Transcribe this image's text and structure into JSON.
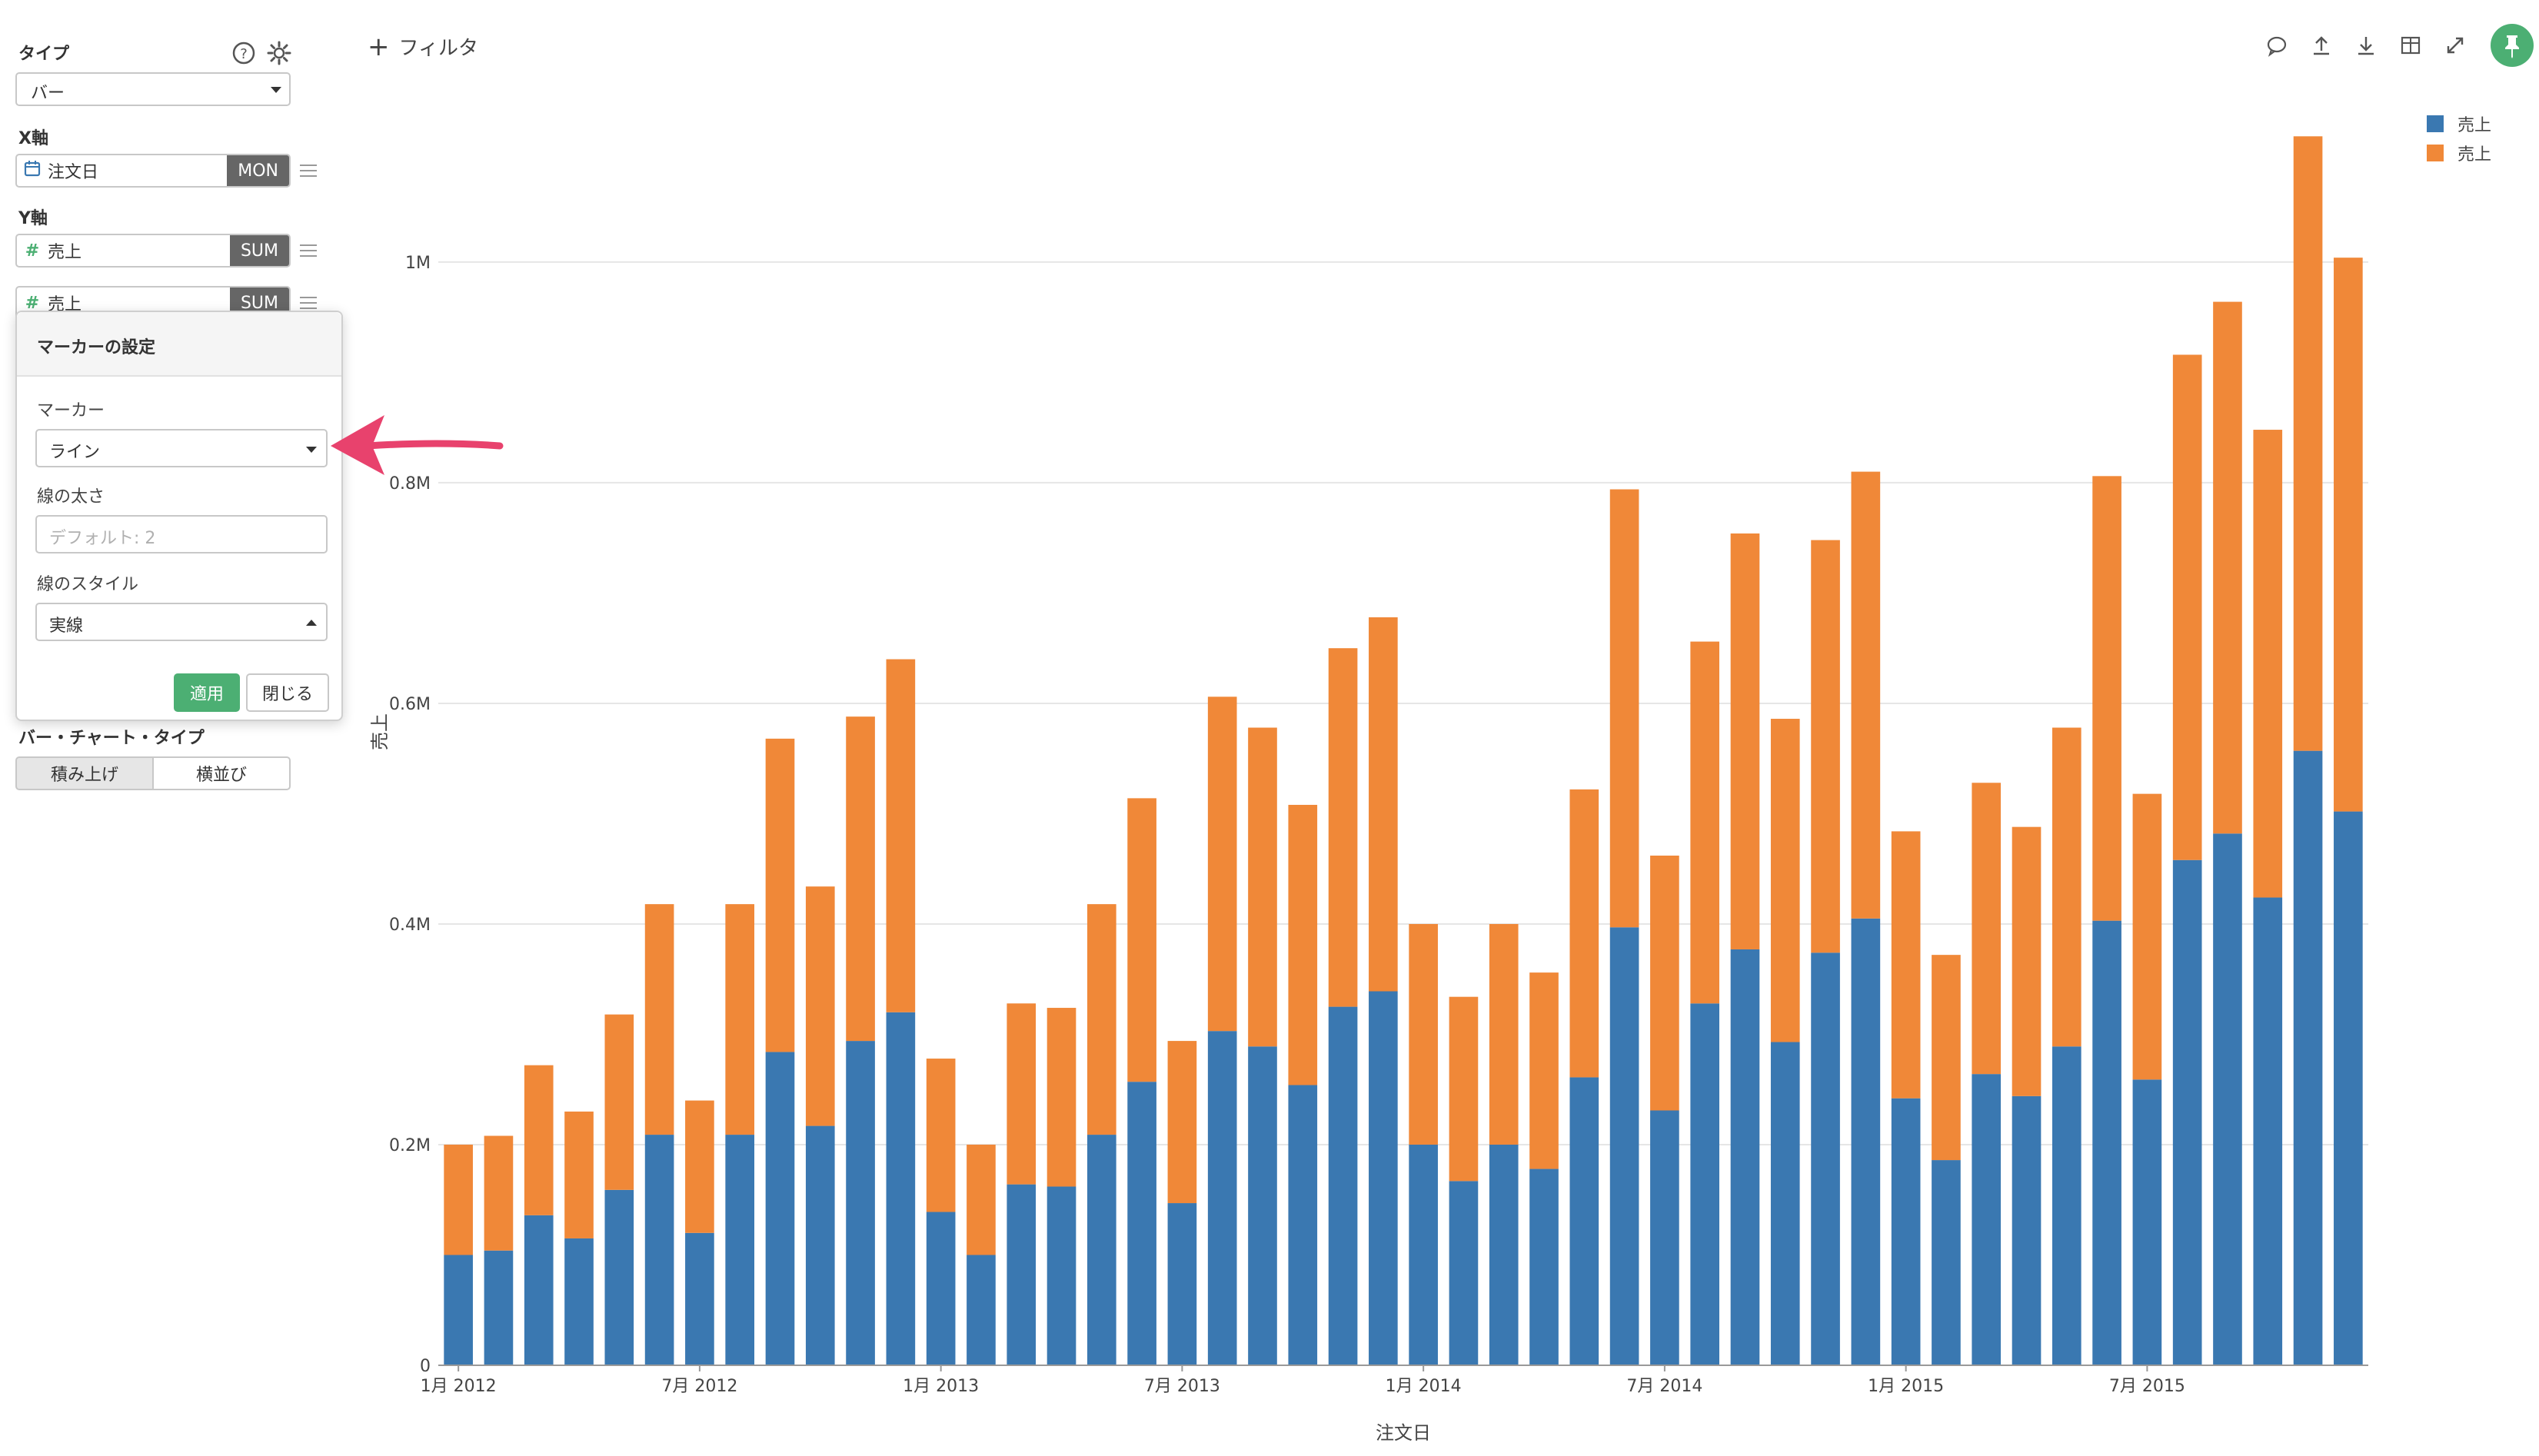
{
  "sidebar": {
    "type_label": "タイプ",
    "type_value": "バー",
    "x_axis_label": "X軸",
    "x_field": "注文日",
    "x_agg": "MON",
    "y_axis_label": "Y軸",
    "y_fields": [
      {
        "name": "売上",
        "agg": "SUM"
      },
      {
        "name": "売上",
        "agg": "SUM"
      }
    ],
    "bar_type_label": "バー・チャート・タイプ",
    "bar_type_options": [
      "積み上げ",
      "横並び"
    ]
  },
  "popover": {
    "title": "マーカーの設定",
    "marker_label": "マーカー",
    "marker_value": "ライン",
    "width_label": "線の太さ",
    "width_placeholder": "デフォルト: 2",
    "style_label": "線のスタイル",
    "style_value": "実線",
    "apply_label": "適用",
    "close_label": "閉じる"
  },
  "toolbar": {
    "filter_label": "フィルタ",
    "icons": [
      "comment-icon",
      "upload-icon",
      "download-icon",
      "table-icon",
      "expand-icon",
      "pin-icon"
    ]
  },
  "colors": {
    "series1": "#3a78b1",
    "series2": "#f08838",
    "accent": "#4caf73",
    "arrow": "#e8426d"
  },
  "chart_data": {
    "type": "bar",
    "stacked": true,
    "xlabel": "注文日",
    "ylabel": "売上",
    "ylim": [
      0,
      1140000
    ],
    "yticks": [
      0,
      200000,
      400000,
      600000,
      800000,
      1000000
    ],
    "ytick_labels": [
      "0",
      "0.2M",
      "0.4M",
      "0.6M",
      "0.8M",
      "1M"
    ],
    "xtick_labels": [
      {
        "index": 0,
        "label": "1月 2012"
      },
      {
        "index": 6,
        "label": "7月 2012"
      },
      {
        "index": 12,
        "label": "1月 2013"
      },
      {
        "index": 18,
        "label": "7月 2013"
      },
      {
        "index": 24,
        "label": "1月 2014"
      },
      {
        "index": 30,
        "label": "7月 2014"
      },
      {
        "index": 36,
        "label": "1月 2015"
      },
      {
        "index": 42,
        "label": "7月 2015"
      }
    ],
    "legend_position": "top-right",
    "series": [
      {
        "name": "売上",
        "values": [
          100000,
          104000,
          136000,
          115000,
          159000,
          209000,
          120000,
          209000,
          284000,
          217000,
          294000,
          320000,
          139000,
          100000,
          164000,
          162000,
          209000,
          257000,
          147000,
          303000,
          289000,
          254000,
          325000,
          339000,
          200000,
          167000,
          200000,
          178000,
          261000,
          397000,
          231000,
          328000,
          377000,
          293000,
          374000,
          405000,
          242000,
          186000,
          264000,
          244000,
          289000,
          403000,
          259000,
          458000,
          482000,
          424000,
          557000,
          502000
        ]
      },
      {
        "name": "売上",
        "values": [
          100000,
          104000,
          136000,
          115000,
          159000,
          209000,
          120000,
          209000,
          284000,
          217000,
          294000,
          320000,
          139000,
          100000,
          164000,
          162000,
          209000,
          257000,
          147000,
          303000,
          289000,
          254000,
          325000,
          339000,
          200000,
          167000,
          200000,
          178000,
          261000,
          397000,
          231000,
          328000,
          377000,
          293000,
          374000,
          405000,
          242000,
          186000,
          264000,
          244000,
          289000,
          403000,
          259000,
          458000,
          482000,
          424000,
          557000,
          502000
        ]
      }
    ]
  }
}
